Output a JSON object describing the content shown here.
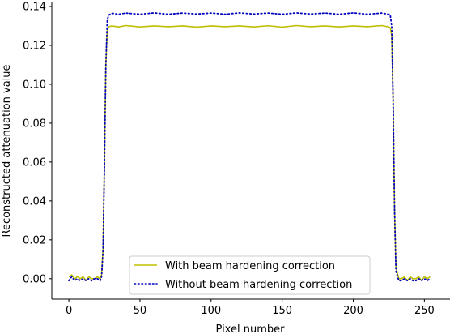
{
  "chart_data": {
    "type": "line",
    "xlabel": "Pixel number",
    "ylabel": "Reconstructed attenuation value",
    "xlim": [
      -12,
      268
    ],
    "ylim": [
      -0.0105,
      0.1425
    ],
    "xticks": [
      0,
      50,
      100,
      150,
      200,
      250
    ],
    "xtick_labels": [
      "0",
      "50",
      "100",
      "150",
      "200",
      "250"
    ],
    "yticks": [
      0.0,
      0.02,
      0.04,
      0.06,
      0.08,
      0.1,
      0.12,
      0.14
    ],
    "ytick_labels": [
      "0.00",
      "0.02",
      "0.04",
      "0.06",
      "0.08",
      "0.10",
      "0.12",
      "0.14"
    ],
    "grid": false,
    "legend": "lower-center",
    "series": [
      {
        "name": "With beam hardening correction",
        "color": "#bfbf00",
        "style": "solid",
        "x": [
          0,
          2,
          4,
          6,
          8,
          10,
          12,
          14,
          16,
          18,
          20,
          22,
          23,
          24,
          25,
          26,
          27,
          28,
          30,
          35,
          40,
          50,
          60,
          70,
          80,
          90,
          100,
          110,
          120,
          130,
          140,
          150,
          160,
          170,
          180,
          190,
          200,
          210,
          220,
          225,
          226,
          227,
          228,
          229,
          230,
          232,
          234,
          236,
          238,
          240,
          242,
          244,
          246,
          248,
          250,
          252,
          254
        ],
        "y": [
          0.001,
          0.002,
          0.0,
          0.001,
          0.0,
          0.001,
          -0.001,
          0.001,
          0.0,
          0.0,
          0.001,
          0.0,
          0.002,
          0.015,
          0.06,
          0.11,
          0.128,
          0.1295,
          0.13,
          0.1295,
          0.1302,
          0.1295,
          0.13,
          0.1296,
          0.13,
          0.1294,
          0.13,
          0.1296,
          0.13,
          0.1295,
          0.1301,
          0.1294,
          0.1302,
          0.1296,
          0.13,
          0.1295,
          0.13,
          0.1296,
          0.1302,
          0.1295,
          0.129,
          0.125,
          0.09,
          0.035,
          0.006,
          0.0,
          0.0,
          0.001,
          -0.001,
          0.001,
          0.0,
          0.0,
          0.001,
          -0.001,
          0.001,
          0.0,
          0.001
        ]
      },
      {
        "name": "Without beam hardening correction",
        "color": "#0000bf",
        "style": "dotted",
        "x": [
          0,
          2,
          4,
          6,
          8,
          10,
          12,
          14,
          16,
          18,
          20,
          22,
          23,
          24,
          25,
          26,
          27,
          28,
          30,
          35,
          40,
          50,
          60,
          70,
          80,
          90,
          100,
          110,
          120,
          130,
          140,
          150,
          160,
          170,
          180,
          190,
          200,
          210,
          220,
          225,
          226,
          227,
          228,
          229,
          230,
          232,
          234,
          236,
          238,
          240,
          242,
          244,
          246,
          248,
          250,
          252,
          254
        ],
        "y": [
          -0.001,
          0.001,
          -0.001,
          0.0,
          -0.001,
          0.0,
          -0.001,
          0.0,
          -0.001,
          0.0,
          0.0,
          -0.001,
          0.001,
          0.014,
          0.058,
          0.11,
          0.133,
          0.1355,
          0.1365,
          0.136,
          0.1366,
          0.136,
          0.1367,
          0.136,
          0.1366,
          0.1361,
          0.1366,
          0.136,
          0.1367,
          0.1361,
          0.1366,
          0.136,
          0.1367,
          0.1361,
          0.1366,
          0.136,
          0.1367,
          0.136,
          0.1366,
          0.136,
          0.1355,
          0.13,
          0.092,
          0.036,
          0.004,
          -0.001,
          -0.001,
          0.0,
          -0.001,
          0.0,
          -0.001,
          -0.001,
          0.0,
          -0.001,
          0.0,
          -0.001,
          0.0
        ]
      }
    ]
  }
}
